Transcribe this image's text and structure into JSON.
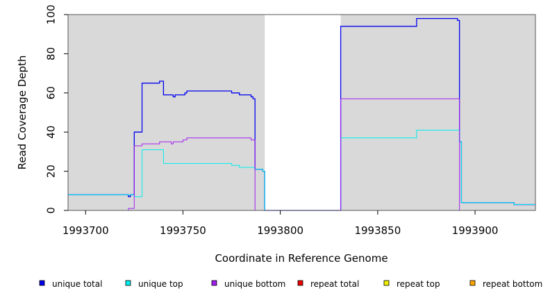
{
  "chart_data": {
    "type": "line",
    "step": true,
    "xlabel": "Coordinate in Reference Genome",
    "ylabel": "Read Coverage Depth",
    "xlim": [
      1993691,
      1993931
    ],
    "ylim": [
      0,
      100
    ],
    "x_ticks": [
      1993700,
      1993750,
      1993800,
      1993850,
      1993900
    ],
    "x_tick_labels": [
      "1993700",
      "1993750",
      "1993800",
      "1993850",
      "1993900"
    ],
    "y_ticks": [
      0,
      20,
      40,
      60,
      80,
      100
    ],
    "y_tick_labels": [
      "0",
      "20",
      "40",
      "60",
      "80",
      "100"
    ],
    "shaded_regions": [
      {
        "x_start": 1993691,
        "x_end": 1993792,
        "color": "#d9d9d9"
      },
      {
        "x_start": 1993831,
        "x_end": 1993931,
        "color": "#d9d9d9"
      }
    ],
    "series": [
      {
        "name": "unique total",
        "color": "#0000ee",
        "points": [
          [
            1993691,
            8
          ],
          [
            1993722,
            8
          ],
          [
            1993722,
            7
          ],
          [
            1993723,
            7
          ],
          [
            1993723,
            8
          ],
          [
            1993725,
            8
          ],
          [
            1993725,
            40
          ],
          [
            1993729,
            40
          ],
          [
            1993729,
            65
          ],
          [
            1993738,
            65
          ],
          [
            1993738,
            66
          ],
          [
            1993740,
            66
          ],
          [
            1993740,
            59
          ],
          [
            1993745,
            59
          ],
          [
            1993745,
            58
          ],
          [
            1993746,
            58
          ],
          [
            1993746,
            59
          ],
          [
            1993751,
            59
          ],
          [
            1993751,
            60
          ],
          [
            1993752,
            60
          ],
          [
            1993752,
            61
          ],
          [
            1993775,
            61
          ],
          [
            1993775,
            60
          ],
          [
            1993779,
            60
          ],
          [
            1993779,
            59
          ],
          [
            1993785,
            59
          ],
          [
            1993785,
            58
          ],
          [
            1993786,
            58
          ],
          [
            1993786,
            57
          ],
          [
            1993787,
            57
          ],
          [
            1993787,
            21
          ],
          [
            1993791,
            21
          ],
          [
            1993791,
            20
          ],
          [
            1993792,
            20
          ],
          [
            1993792,
            0
          ],
          [
            1993831,
            0
          ],
          [
            1993831,
            94
          ],
          [
            1993870,
            94
          ],
          [
            1993870,
            98
          ],
          [
            1993891,
            98
          ],
          [
            1993891,
            97
          ],
          [
            1993892,
            97
          ],
          [
            1993892,
            35
          ],
          [
            1993893,
            35
          ],
          [
            1993893,
            4
          ],
          [
            1993920,
            4
          ],
          [
            1993920,
            3
          ],
          [
            1993931,
            3
          ]
        ]
      },
      {
        "name": "unique top",
        "color": "#00eeee",
        "points": [
          [
            1993691,
            8
          ],
          [
            1993725,
            8
          ],
          [
            1993725,
            7
          ],
          [
            1993729,
            7
          ],
          [
            1993729,
            31
          ],
          [
            1993734,
            31
          ],
          [
            1993734,
            31
          ],
          [
            1993740,
            31
          ],
          [
            1993740,
            24
          ],
          [
            1993775,
            24
          ],
          [
            1993775,
            23
          ],
          [
            1993779,
            23
          ],
          [
            1993779,
            22
          ],
          [
            1993787,
            22
          ],
          [
            1993787,
            21
          ],
          [
            1993791,
            21
          ],
          [
            1993791,
            20
          ],
          [
            1993792,
            20
          ],
          [
            1993792,
            0
          ],
          [
            1993831,
            0
          ],
          [
            1993831,
            37
          ],
          [
            1993870,
            37
          ],
          [
            1993870,
            41
          ],
          [
            1993892,
            41
          ],
          [
            1993892,
            35
          ],
          [
            1993893,
            35
          ],
          [
            1993893,
            4
          ],
          [
            1993920,
            4
          ],
          [
            1993920,
            3
          ],
          [
            1993931,
            3
          ]
        ]
      },
      {
        "name": "unique bottom",
        "color": "#a020f0",
        "points": [
          [
            1993691,
            0
          ],
          [
            1993722,
            0
          ],
          [
            1993722,
            1
          ],
          [
            1993725,
            1
          ],
          [
            1993725,
            33
          ],
          [
            1993729,
            33
          ],
          [
            1993729,
            34
          ],
          [
            1993738,
            34
          ],
          [
            1993738,
            35
          ],
          [
            1993744,
            35
          ],
          [
            1993744,
            34
          ],
          [
            1993745,
            34
          ],
          [
            1993745,
            35
          ],
          [
            1993750,
            35
          ],
          [
            1993750,
            36
          ],
          [
            1993752,
            36
          ],
          [
            1993752,
            37
          ],
          [
            1993785,
            37
          ],
          [
            1993785,
            36
          ],
          [
            1993787,
            36
          ],
          [
            1993787,
            0
          ],
          [
            1993831,
            0
          ],
          [
            1993831,
            57
          ],
          [
            1993892,
            57
          ],
          [
            1993892,
            0
          ],
          [
            1993931,
            0
          ]
        ]
      },
      {
        "name": "repeat total",
        "color": "#ee0000",
        "points": [
          [
            1993691,
            0
          ],
          [
            1993931,
            0
          ]
        ]
      },
      {
        "name": "repeat top",
        "color": "#eeee00",
        "points": [
          [
            1993691,
            0
          ],
          [
            1993931,
            0
          ]
        ]
      },
      {
        "name": "repeat bottom",
        "color": "#ffa500",
        "points": [
          [
            1993691,
            0
          ],
          [
            1993931,
            0
          ]
        ]
      }
    ],
    "legend": {
      "placement": "bottom",
      "items": [
        {
          "label": "unique total",
          "color": "#0000ee"
        },
        {
          "label": "unique top",
          "color": "#00eeee"
        },
        {
          "label": "unique bottom",
          "color": "#a020f0"
        },
        {
          "label": "repeat total",
          "color": "#ee0000"
        },
        {
          "label": "repeat top",
          "color": "#eeee00"
        },
        {
          "label": "repeat bottom",
          "color": "#ffa500"
        }
      ]
    }
  }
}
